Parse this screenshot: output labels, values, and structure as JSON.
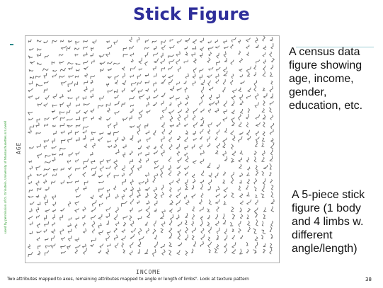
{
  "slide": {
    "title": "Stick Figure",
    "credit": "used by permission of G. Grinstein, University of Massachusettes at Lowell",
    "figure": {
      "y_axis_label": "AGE",
      "x_axis_label": "INCOME"
    },
    "description_1": "A census data figure showing age, income, gender, education, etc.",
    "description_2": "A 5-piece stick figure (1 body and 4 limbs w. different angle/length)",
    "caption": "Two attributes mapped to axes, remaining attributes mapped to angle or length of limbs\". Look at texture pattern",
    "page_number": "38"
  },
  "colors": {
    "title": "#2e2e9a",
    "credit": "#39a23a",
    "glyph": "#6a6a6a"
  }
}
